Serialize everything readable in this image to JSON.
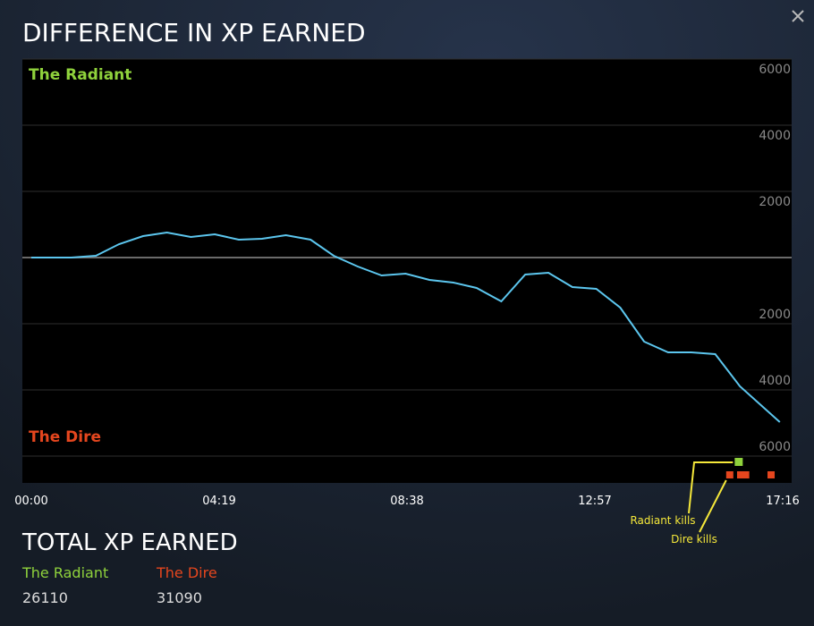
{
  "title": "DIFFERENCE IN XP EARNED",
  "chart_data": {
    "type": "line",
    "top_label": "The Radiant",
    "bottom_label": "The Dire",
    "x": [
      0,
      55,
      89,
      121,
      154,
      187,
      220,
      253,
      286,
      318,
      351,
      385,
      417,
      450,
      483,
      516,
      549,
      582,
      614,
      648,
      681,
      713,
      746,
      779,
      812,
      845,
      878,
      910,
      943,
      977,
      1032
    ],
    "series": [
      {
        "name": "XP difference",
        "color": "#5cc6ee",
        "values": [
          0,
          0,
          54,
          405,
          649,
          757,
          622,
          703,
          541,
          568,
          676,
          541,
          54,
          -270,
          -541,
          -486,
          -676,
          -757,
          -919,
          -1324,
          -514,
          -459,
          -892,
          -946,
          -1514,
          -2541,
          -2865,
          -2865,
          -2919,
          -3892,
          -4973
        ]
      }
    ],
    "xlim": [
      0,
      1036
    ],
    "xticks": [
      {
        "value": 0,
        "label": "00:00"
      },
      {
        "value": 259,
        "label": "04:19"
      },
      {
        "value": 518,
        "label": "08:38"
      },
      {
        "value": 777,
        "label": "12:57"
      },
      {
        "value": 1036,
        "label": "17:16"
      }
    ],
    "ylim": [
      -6000,
      6000
    ],
    "yticks": [
      {
        "value": 6000,
        "label": "6000"
      },
      {
        "value": 4000,
        "label": "4000"
      },
      {
        "value": 2000,
        "label": "2000"
      },
      0,
      {
        "value": -2000,
        "label": "2000"
      },
      {
        "value": -4000,
        "label": "4000"
      },
      {
        "value": -6000,
        "label": "6000"
      }
    ],
    "grid": true,
    "kills": {
      "radiant": {
        "label": "Radiant kills",
        "color": "#8fd23c",
        "x": [
          976
        ]
      },
      "dire": {
        "label": "Dire kills",
        "color": "#e5461e",
        "x": [
          963,
          978,
          985,
          1020
        ]
      }
    },
    "annotation_color": "#f5e83a"
  },
  "totals": {
    "title": "TOTAL XP EARNED",
    "radiant": {
      "label": "The Radiant",
      "value": "26110"
    },
    "dire": {
      "label": "The Dire",
      "value": "31090"
    }
  }
}
